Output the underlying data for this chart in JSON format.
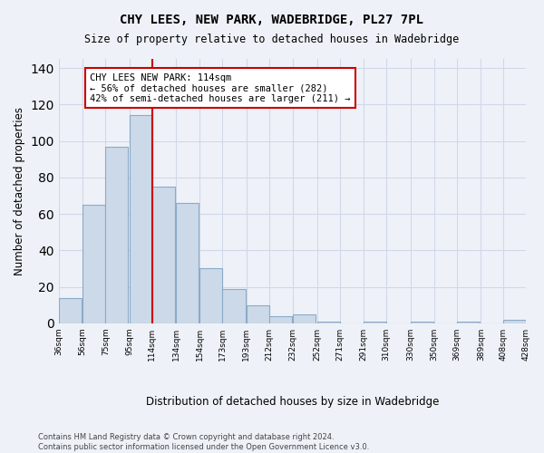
{
  "title": "CHY LEES, NEW PARK, WADEBRIDGE, PL27 7PL",
  "subtitle": "Size of property relative to detached houses in Wadebridge",
  "xlabel": "Distribution of detached houses by size in Wadebridge",
  "ylabel": "Number of detached properties",
  "bar_values": [
    14,
    65,
    97,
    114,
    75,
    66,
    30,
    19,
    10,
    4,
    5,
    1,
    0,
    1,
    0,
    1,
    0,
    1,
    0,
    2
  ],
  "bar_left_edges": [
    36,
    56,
    75,
    95,
    114,
    134,
    154,
    173,
    193,
    212,
    232,
    252,
    271,
    291,
    310,
    330,
    350,
    369,
    389,
    408
  ],
  "categories": [
    "36sqm",
    "56sqm",
    "75sqm",
    "95sqm",
    "114sqm",
    "134sqm",
    "154sqm",
    "173sqm",
    "193sqm",
    "212sqm",
    "232sqm",
    "252sqm",
    "271sqm",
    "291sqm",
    "310sqm",
    "330sqm",
    "350sqm",
    "369sqm",
    "389sqm",
    "408sqm",
    "428sqm"
  ],
  "bin_width": 19,
  "property_size": 114,
  "bar_color": "#ccd9e8",
  "bar_edge_color": "#8baac8",
  "grid_color": "#d0d8e8",
  "vline_color": "#cc0000",
  "annotation_text": "CHY LEES NEW PARK: 114sqm\n← 56% of detached houses are smaller (282)\n42% of semi-detached houses are larger (211) →",
  "annotation_box_color": "#ffffff",
  "annotation_box_edge_color": "#cc0000",
  "ylim": [
    0,
    145
  ],
  "yticks": [
    0,
    20,
    40,
    60,
    80,
    100,
    120,
    140
  ],
  "footer_text": "Contains HM Land Registry data © Crown copyright and database right 2024.\nContains public sector information licensed under the Open Government Licence v3.0.",
  "bg_color": "#eef2f8",
  "plot_bg_color": "#eef2f8"
}
